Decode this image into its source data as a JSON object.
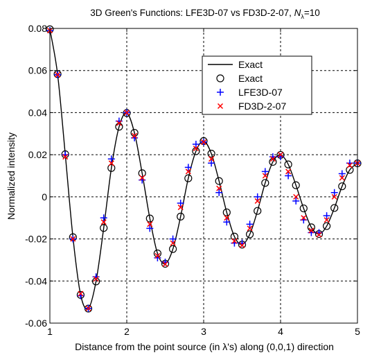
{
  "chart_data": {
    "type": "line",
    "title_prefix": "3D Green's Functions: LFE3D-07 vs FD3D-2-07, ",
    "title_var": "N",
    "title_sub": "λ",
    "title_suffix": "=10",
    "xlabel": "Distance from the point source (in λ's) along (0,0,1) direction",
    "ylabel": "Normalized intensity",
    "xlim": [
      1,
      5
    ],
    "ylim": [
      -0.06,
      0.08
    ],
    "xticks": [
      1,
      2,
      3,
      4,
      5
    ],
    "xtick_labels": [
      "1",
      "2",
      "3",
      "4",
      "5"
    ],
    "yticks": [
      -0.06,
      -0.04,
      -0.02,
      0,
      0.02,
      0.04,
      0.06,
      0.08
    ],
    "ytick_labels": [
      "-0.06",
      "-0.04",
      "-0.02",
      "0",
      "0.02",
      "0.04",
      "0.06",
      "0.08"
    ],
    "grid": true,
    "legend_position": "top-right",
    "legend": [
      "Exact",
      "Exact",
      "LFE3D-07",
      "FD3D-2-07"
    ],
    "series": [
      {
        "name": "Exact",
        "style": "line",
        "color": "#000000",
        "x": [
          1.0,
          1.1,
          1.2,
          1.3,
          1.4,
          1.5,
          1.6,
          1.7,
          1.8,
          1.9,
          2.0,
          2.1,
          2.2,
          2.3,
          2.4,
          2.5,
          2.6,
          2.7,
          2.8,
          2.9,
          3.0,
          3.1,
          3.2,
          3.3,
          3.4,
          3.5,
          3.6,
          3.7,
          3.8,
          3.9,
          4.0,
          4.1,
          4.2,
          4.3,
          4.4,
          4.5,
          4.6,
          4.7,
          4.8,
          4.9,
          5.0
        ],
        "y": [
          0.0796,
          0.0583,
          0.0202,
          -0.0192,
          -0.0466,
          -0.0531,
          -0.0402,
          -0.0148,
          0.0137,
          0.0333,
          0.0398,
          0.0304,
          0.0112,
          -0.0103,
          -0.0269,
          -0.0318,
          -0.0248,
          -0.0094,
          0.0088,
          0.0217,
          0.0265,
          0.0205,
          0.0075,
          -0.0074,
          -0.0189,
          -0.0227,
          -0.0178,
          -0.0067,
          0.0066,
          0.0166,
          0.0199,
          0.0154,
          0.0055,
          -0.0055,
          -0.0145,
          -0.0177,
          -0.0139,
          -0.0053,
          0.005,
          0.0128,
          0.0159
        ]
      },
      {
        "name": "Exact",
        "style": "circle",
        "color": "#000000",
        "x": [
          1.0,
          1.1,
          1.2,
          1.3,
          1.4,
          1.5,
          1.6,
          1.7,
          1.8,
          1.9,
          2.0,
          2.1,
          2.2,
          2.3,
          2.4,
          2.5,
          2.6,
          2.7,
          2.8,
          2.9,
          3.0,
          3.1,
          3.2,
          3.3,
          3.4,
          3.5,
          3.6,
          3.7,
          3.8,
          3.9,
          4.0,
          4.1,
          4.2,
          4.3,
          4.4,
          4.5,
          4.6,
          4.7,
          4.8,
          4.9,
          5.0
        ],
        "y": [
          0.0796,
          0.0583,
          0.0202,
          -0.0192,
          -0.0466,
          -0.0531,
          -0.0402,
          -0.0148,
          0.0137,
          0.0333,
          0.0398,
          0.0304,
          0.0112,
          -0.0103,
          -0.0269,
          -0.0318,
          -0.0248,
          -0.0094,
          0.0088,
          0.0217,
          0.0265,
          0.0205,
          0.0075,
          -0.0074,
          -0.0189,
          -0.0227,
          -0.0178,
          -0.0067,
          0.0066,
          0.0166,
          0.0199,
          0.0154,
          0.0055,
          -0.0055,
          -0.0145,
          -0.0177,
          -0.0139,
          -0.0053,
          0.005,
          0.0128,
          0.0159
        ]
      },
      {
        "name": "LFE3D-07",
        "style": "plus",
        "color": "#0000ff",
        "x": [
          1.0,
          1.1,
          1.2,
          1.3,
          1.4,
          1.5,
          1.6,
          1.7,
          1.8,
          1.9,
          2.0,
          2.1,
          2.2,
          2.3,
          2.4,
          2.5,
          2.6,
          2.7,
          2.8,
          2.9,
          3.0,
          3.1,
          3.2,
          3.3,
          3.4,
          3.5,
          3.6,
          3.7,
          3.8,
          3.9,
          4.0,
          4.1,
          4.2,
          4.3,
          4.4,
          4.5,
          4.6,
          4.7,
          4.8,
          4.9,
          5.0
        ],
        "y": [
          0.079,
          0.058,
          0.02,
          -0.02,
          -0.047,
          -0.053,
          -0.038,
          -0.01,
          0.018,
          0.036,
          0.04,
          0.028,
          0.008,
          -0.015,
          -0.029,
          -0.031,
          -0.02,
          -0.003,
          0.014,
          0.025,
          0.026,
          0.016,
          0.002,
          -0.012,
          -0.022,
          -0.022,
          -0.013,
          0.0,
          0.012,
          0.019,
          0.019,
          0.01,
          -0.002,
          -0.011,
          -0.017,
          -0.017,
          -0.009,
          0.002,
          0.011,
          0.016,
          0.016
        ]
      },
      {
        "name": "FD3D-2-07",
        "style": "cross",
        "color": "#ff0000",
        "x": [
          1.0,
          1.1,
          1.2,
          1.3,
          1.4,
          1.5,
          1.6,
          1.7,
          1.8,
          1.9,
          2.0,
          2.1,
          2.2,
          2.3,
          2.4,
          2.5,
          2.6,
          2.7,
          2.8,
          2.9,
          3.0,
          3.1,
          3.2,
          3.3,
          3.4,
          3.5,
          3.6,
          3.7,
          3.8,
          3.9,
          4.0,
          4.1,
          4.2,
          4.3,
          4.4,
          4.5,
          4.6,
          4.7,
          4.8,
          4.9,
          5.0
        ],
        "y": [
          0.079,
          0.058,
          0.019,
          -0.02,
          -0.046,
          -0.053,
          -0.039,
          -0.012,
          0.016,
          0.035,
          0.04,
          0.029,
          0.009,
          -0.013,
          -0.028,
          -0.032,
          -0.022,
          -0.005,
          0.012,
          0.023,
          0.026,
          0.018,
          0.004,
          -0.01,
          -0.021,
          -0.023,
          -0.015,
          -0.002,
          0.01,
          0.018,
          0.02,
          0.012,
          0.0,
          -0.01,
          -0.016,
          -0.018,
          -0.011,
          0.0,
          0.009,
          0.015,
          0.016
        ]
      }
    ]
  }
}
